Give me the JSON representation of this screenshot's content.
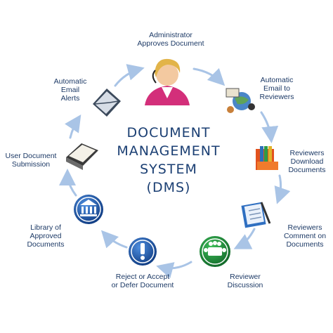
{
  "title_lines": [
    "DOCUMENT",
    "MANAGEMENT",
    "SYSTEM",
    "(DMS)"
  ],
  "steps": [
    {
      "lines": [
        "Administrator",
        "Approves Document"
      ],
      "icon": "administrator-icon"
    },
    {
      "lines": [
        "Automatic",
        "Email to",
        "Reviewers"
      ],
      "icon": "email-globe-icon"
    },
    {
      "lines": [
        "Reviewers",
        "Download",
        "Documents"
      ],
      "icon": "books-icon"
    },
    {
      "lines": [
        "Reviewers",
        "Comment on",
        "Documents"
      ],
      "icon": "clipboard-pen-icon"
    },
    {
      "lines": [
        "Reviewer",
        "Discussion"
      ],
      "icon": "meeting-icon"
    },
    {
      "lines": [
        "Reject or Accept",
        "or Defer Document"
      ],
      "icon": "exclamation-icon"
    },
    {
      "lines": [
        "Library of",
        "Approved",
        "Documents"
      ],
      "icon": "library-icon"
    },
    {
      "lines": [
        "User Document",
        "Submission"
      ],
      "icon": "document-tray-icon"
    },
    {
      "lines": [
        "Automatic",
        "Email",
        "Alerts"
      ],
      "icon": "envelope-icon"
    }
  ],
  "colors": {
    "text": "#1d3a66",
    "title": "#1b3f73",
    "arrow": "#a9c4e6",
    "accent_blue": "#1f5fb4",
    "accent_green": "#1e8a3a"
  }
}
